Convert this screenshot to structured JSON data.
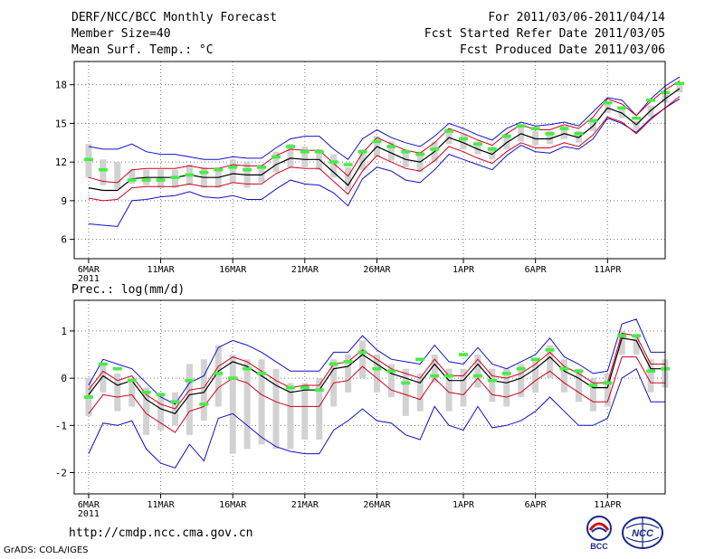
{
  "header": {
    "title": "DERF/NCC/BCC Monthly Forecast",
    "member_size": "Member Size=40",
    "variable": "Mean Surf. Temp.: °C",
    "period": "For 2011/03/06-2011/04/14",
    "started": "Fcst Started Refer Date 2011/03/05",
    "produced": "Fcst Produced Date 2011/03/06"
  },
  "footer": {
    "url": "http://cmdp.ncc.cma.gov.cn",
    "credit": "GrADS: COLA/IGES",
    "logo_left_text": "BCC",
    "logo_right_text": "NCC"
  },
  "colors": {
    "mean": "#000000",
    "inner_band": "#d0001c",
    "outer_band": "#1010c8",
    "member": "#d2d2d2",
    "marker": "#44ee44",
    "grid": "#7a7a7a"
  },
  "chart_data": [
    {
      "type": "line",
      "title": "Mean Surf. Temp.: °C",
      "x_ticks": [
        "6MAR",
        "11MAR",
        "16MAR",
        "21MAR",
        "26MAR",
        "1APR",
        "6APR",
        "11APR"
      ],
      "x_tick_days": [
        0,
        5,
        10,
        15,
        20,
        26,
        31,
        36
      ],
      "x_sublabel": "2011",
      "ylim": [
        4.5,
        19.8
      ],
      "xlim": [
        -1,
        40
      ],
      "yticks": [
        6,
        9,
        12,
        15,
        18
      ],
      "ytick_labels": [
        "6",
        "9",
        "12",
        "15",
        "18"
      ],
      "series": [
        {
          "name": "mean",
          "values": [
            10.0,
            9.8,
            9.8,
            10.7,
            10.8,
            10.8,
            10.8,
            11.0,
            10.8,
            10.8,
            11.1,
            11.0,
            11.0,
            11.8,
            12.3,
            12.2,
            12.2,
            11.2,
            10.2,
            12.0,
            13.2,
            12.7,
            12.2,
            12.0,
            12.8,
            13.9,
            13.5,
            13.0,
            12.6,
            13.5,
            14.2,
            13.8,
            13.8,
            14.2,
            13.9,
            14.8,
            16.2,
            15.8,
            14.9,
            16.0,
            16.9,
            17.7
          ]
        },
        {
          "name": "upper_inner",
          "values": [
            10.8,
            10.5,
            10.4,
            11.4,
            11.5,
            11.5,
            11.5,
            11.7,
            11.5,
            11.5,
            11.8,
            11.7,
            11.7,
            12.5,
            13.0,
            12.9,
            12.9,
            11.9,
            10.9,
            12.7,
            13.9,
            13.4,
            12.9,
            12.7,
            13.5,
            14.6,
            14.2,
            13.7,
            13.3,
            14.2,
            14.9,
            14.5,
            14.5,
            14.9,
            14.6,
            15.5,
            16.9,
            16.5,
            15.6,
            16.7,
            17.6,
            18.3
          ]
        },
        {
          "name": "lower_inner",
          "values": [
            9.2,
            9.0,
            9.1,
            10.0,
            10.1,
            10.1,
            10.1,
            10.3,
            10.1,
            10.1,
            10.4,
            10.3,
            10.3,
            11.1,
            11.6,
            11.5,
            11.5,
            10.5,
            9.5,
            11.3,
            12.5,
            12.0,
            11.5,
            11.3,
            12.1,
            13.2,
            12.8,
            12.3,
            11.9,
            12.8,
            13.5,
            13.1,
            13.1,
            13.5,
            13.2,
            14.1,
            15.5,
            15.1,
            14.2,
            15.3,
            16.2,
            17.1
          ]
        },
        {
          "name": "upper_outer",
          "values": [
            13.2,
            13.0,
            13.0,
            13.4,
            12.8,
            12.6,
            12.6,
            12.4,
            12.2,
            12.2,
            12.4,
            12.3,
            12.3,
            13.1,
            13.8,
            14.0,
            14.0,
            13.0,
            12.2,
            13.8,
            14.5,
            13.9,
            13.5,
            13.2,
            14.0,
            15.0,
            14.6,
            14.1,
            13.7,
            14.6,
            15.1,
            14.8,
            14.9,
            15.1,
            14.8,
            15.9,
            17.0,
            16.8,
            15.6,
            16.9,
            17.9,
            18.6
          ]
        },
        {
          "name": "lower_outer",
          "values": [
            7.2,
            7.1,
            7.0,
            9.0,
            9.1,
            9.3,
            9.4,
            9.7,
            9.3,
            9.2,
            9.4,
            9.1,
            9.1,
            9.9,
            10.6,
            10.3,
            10.2,
            9.6,
            8.6,
            10.7,
            11.6,
            11.3,
            10.6,
            10.4,
            11.4,
            12.6,
            12.2,
            11.8,
            11.4,
            12.5,
            13.3,
            12.8,
            12.7,
            13.2,
            13.0,
            13.8,
            15.4,
            15.0,
            14.3,
            15.4,
            16.2,
            16.9
          ]
        },
        {
          "name": "ensemble_range_low",
          "values": [
            10.8,
            10.2,
            9.9,
            10.3,
            10.2,
            10.0,
            10.0,
            10.2,
            10.0,
            10.0,
            10.4,
            10.0,
            10.4,
            11.2,
            11.6,
            11.6,
            11.4,
            10.8,
            9.8,
            11.4,
            12.4,
            12.1,
            11.6,
            11.2,
            12.0,
            13.4,
            13.0,
            12.6,
            12.2,
            13.0,
            13.6,
            13.3,
            13.4,
            13.8,
            13.5,
            14.4,
            15.8,
            15.4,
            14.5,
            15.5,
            16.6,
            17.4
          ]
        },
        {
          "name": "ensemble_range_high",
          "values": [
            13.4,
            12.2,
            12.0,
            11.4,
            11.4,
            11.4,
            11.4,
            11.8,
            11.6,
            11.6,
            12.2,
            12.0,
            11.8,
            12.8,
            13.4,
            13.2,
            13.0,
            12.6,
            11.6,
            13.0,
            14.0,
            13.6,
            13.0,
            12.8,
            13.6,
            14.6,
            14.2,
            13.6,
            13.2,
            14.2,
            14.8,
            14.4,
            14.4,
            14.8,
            14.4,
            15.4,
            16.6,
            16.2,
            15.2,
            16.4,
            17.4,
            18.0
          ]
        },
        {
          "name": "observed",
          "values": [
            12.2,
            11.4,
            null,
            10.6,
            10.6,
            10.6,
            10.8,
            11.0,
            11.2,
            11.4,
            11.6,
            11.4,
            11.6,
            12.4,
            13.2,
            12.8,
            12.8,
            12.0,
            11.8,
            12.8,
            13.6,
            13.2,
            12.8,
            12.6,
            13.0,
            14.4,
            13.8,
            13.4,
            13.0,
            14.0,
            14.8,
            14.6,
            14.2,
            14.6,
            14.2,
            15.2,
            16.6,
            16.2,
            15.4,
            16.8,
            17.4,
            18.1
          ]
        }
      ]
    },
    {
      "type": "line",
      "title": "Prec.: log(mm/d)",
      "x_ticks": [
        "6MAR",
        "11MAR",
        "16MAR",
        "21MAR",
        "26MAR",
        "1APR",
        "6APR",
        "11APR"
      ],
      "x_tick_days": [
        0,
        5,
        10,
        15,
        20,
        26,
        31,
        36
      ],
      "x_sublabel": "2011",
      "ylim": [
        -2.45,
        1.65
      ],
      "xlim": [
        -1,
        40
      ],
      "yticks": [
        -2,
        -1,
        0,
        1
      ],
      "ytick_labels": [
        "-2",
        "-1",
        "0",
        "1"
      ],
      "series": [
        {
          "name": "mean",
          "values": [
            -0.35,
            0.05,
            -0.15,
            -0.05,
            -0.45,
            -0.65,
            -0.75,
            -0.35,
            -0.3,
            0.15,
            0.35,
            0.25,
            0.05,
            -0.15,
            -0.3,
            -0.25,
            -0.25,
            0.2,
            0.25,
            0.5,
            0.3,
            0.1,
            0.0,
            -0.1,
            0.3,
            -0.05,
            -0.05,
            0.3,
            -0.05,
            -0.1,
            0.0,
            0.2,
            0.45,
            0.15,
            0.0,
            -0.2,
            -0.2,
            0.85,
            0.8,
            0.2,
            0.2
          ]
        },
        {
          "name": "upper_inner",
          "values": [
            -0.25,
            0.15,
            -0.05,
            0.05,
            -0.35,
            -0.55,
            -0.65,
            -0.25,
            -0.2,
            0.25,
            0.45,
            0.35,
            0.15,
            -0.05,
            -0.2,
            -0.15,
            -0.15,
            0.3,
            0.35,
            0.6,
            0.4,
            0.2,
            0.1,
            0.0,
            0.4,
            0.05,
            0.05,
            0.4,
            0.05,
            0.0,
            0.1,
            0.3,
            0.55,
            0.25,
            0.1,
            -0.1,
            -0.1,
            0.95,
            0.9,
            0.3,
            0.3
          ]
        },
        {
          "name": "lower_inner",
          "values": [
            -0.75,
            -0.35,
            -0.4,
            -0.35,
            -0.75,
            -0.95,
            -1.15,
            -0.7,
            -0.6,
            -0.2,
            0.0,
            -0.1,
            -0.35,
            -0.5,
            -0.6,
            -0.6,
            -0.6,
            -0.1,
            -0.05,
            0.25,
            0.0,
            -0.25,
            -0.35,
            -0.45,
            0.0,
            -0.3,
            -0.35,
            0.0,
            -0.35,
            -0.4,
            -0.3,
            -0.05,
            0.15,
            -0.1,
            -0.3,
            -0.5,
            -0.5,
            0.45,
            0.45,
            -0.1,
            -0.1
          ]
        },
        {
          "name": "upper_outer",
          "values": [
            -0.15,
            0.4,
            0.3,
            0.2,
            -0.1,
            -0.4,
            -0.55,
            -0.1,
            0.05,
            0.65,
            0.8,
            0.7,
            0.55,
            0.35,
            0.15,
            0.15,
            0.15,
            0.55,
            0.55,
            0.9,
            0.6,
            0.4,
            0.35,
            0.3,
            0.7,
            0.35,
            0.3,
            0.65,
            0.3,
            0.2,
            0.35,
            0.5,
            0.85,
            0.45,
            0.3,
            0.1,
            0.15,
            1.15,
            1.25,
            0.55,
            0.55
          ]
        },
        {
          "name": "lower_outer",
          "values": [
            -1.6,
            -0.95,
            -1.0,
            -0.9,
            -1.5,
            -1.8,
            -1.9,
            -1.4,
            -1.75,
            -0.85,
            -0.75,
            -1.0,
            -1.25,
            -1.45,
            -1.55,
            -1.6,
            -1.6,
            -1.1,
            -0.9,
            -0.65,
            -0.9,
            -0.95,
            -1.2,
            -1.3,
            -0.6,
            -1.0,
            -1.1,
            -0.6,
            -1.05,
            -1.0,
            -0.9,
            -0.7,
            -0.4,
            -0.7,
            -1.0,
            -1.0,
            -0.85,
            0.0,
            0.2,
            -0.5,
            -0.5
          ]
        },
        {
          "name": "ensemble_range_low",
          "values": [
            -0.8,
            -0.3,
            -0.7,
            -0.6,
            -1.2,
            -1.1,
            -1.0,
            -1.2,
            -0.9,
            -0.6,
            -1.6,
            -1.5,
            -1.4,
            -1.5,
            -1.5,
            -1.3,
            -1.3,
            -0.6,
            -0.3,
            0.0,
            -0.3,
            -0.4,
            -0.8,
            -0.7,
            -0.1,
            -0.7,
            -0.6,
            -0.2,
            -0.5,
            -0.6,
            -0.4,
            -0.3,
            0.0,
            -0.3,
            -0.5,
            -0.7,
            -0.6,
            0.5,
            0.5,
            -0.3,
            -0.2
          ]
        },
        {
          "name": "ensemble_range_high",
          "values": [
            0.0,
            0.3,
            0.1,
            0.0,
            -0.2,
            -0.3,
            -0.3,
            0.3,
            0.4,
            0.7,
            0.5,
            0.4,
            0.4,
            0.2,
            -0.1,
            -0.1,
            0.0,
            0.4,
            0.5,
            0.8,
            0.5,
            0.3,
            0.2,
            0.1,
            0.5,
            0.2,
            0.2,
            0.5,
            0.2,
            0.2,
            0.3,
            0.4,
            0.7,
            0.4,
            0.2,
            0.0,
            0.1,
            1.0,
            0.9,
            0.4,
            0.4
          ]
        },
        {
          "name": "observed",
          "values": [
            -0.4,
            0.3,
            0.2,
            -0.05,
            -0.3,
            -0.35,
            -0.5,
            -0.05,
            -0.55,
            0.1,
            0.0,
            0.2,
            0.1,
            null,
            -0.2,
            -0.2,
            -0.25,
            0.3,
            0.35,
            0.55,
            0.2,
            0.15,
            -0.1,
            0.4,
            0.05,
            0.05,
            0.5,
            0.05,
            -0.05,
            0.1,
            0.2,
            0.4,
            0.6,
            0.2,
            0.15,
            -0.15,
            -0.1,
            0.9,
            0.9,
            0.15,
            0.2
          ]
        }
      ]
    }
  ]
}
